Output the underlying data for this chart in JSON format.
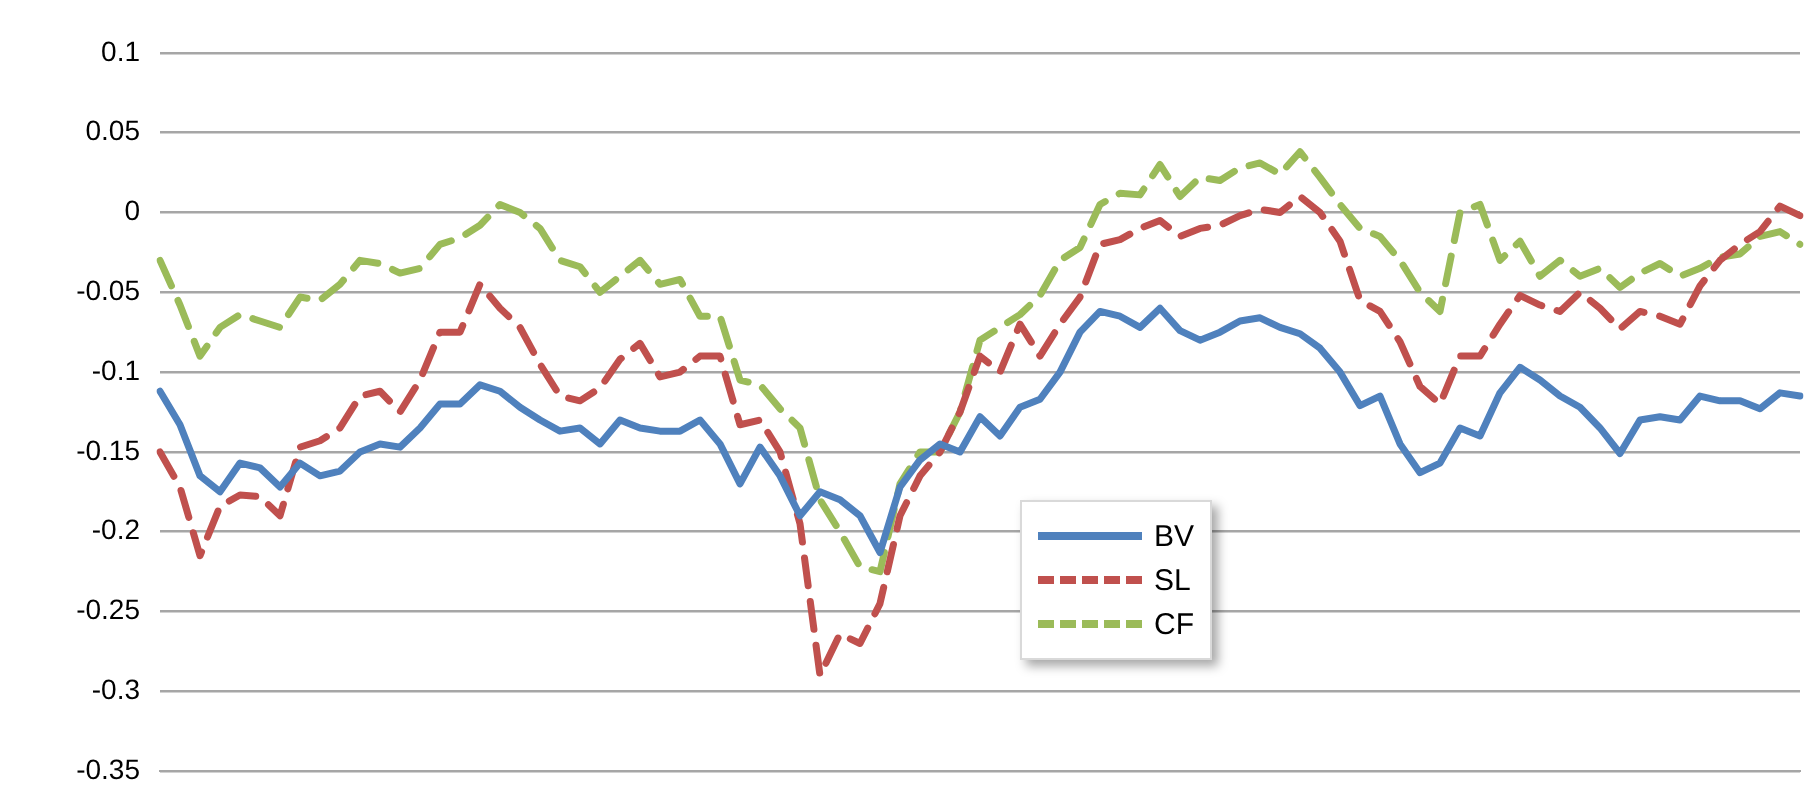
{
  "chart_data": {
    "type": "line",
    "categories": [
      null,
      null,
      null,
      null,
      null,
      null,
      null,
      null,
      null,
      null,
      null,
      null,
      null,
      null,
      null,
      null,
      null,
      null,
      null,
      null,
      null,
      null,
      null,
      null,
      null,
      null,
      null,
      null,
      null,
      null,
      null,
      null,
      null,
      null,
      null,
      null,
      null,
      null,
      null,
      null,
      null,
      null,
      null,
      null,
      null,
      null,
      null,
      null,
      null,
      null,
      null,
      null,
      null,
      null,
      null,
      null,
      null,
      null,
      null,
      null,
      null,
      null,
      null,
      null,
      null,
      null,
      null,
      null,
      null,
      null,
      null,
      null,
      null,
      null,
      null,
      null,
      null,
      null,
      null,
      null,
      null,
      null,
      null
    ],
    "series": [
      {
        "name": "BV",
        "color": "#4f81bd",
        "line_style": "solid",
        "values": [
          -0.112,
          -0.133,
          -0.165,
          -0.175,
          -0.157,
          -0.16,
          -0.172,
          -0.157,
          -0.165,
          -0.162,
          -0.15,
          -0.145,
          -0.147,
          -0.135,
          -0.12,
          -0.12,
          -0.108,
          -0.112,
          -0.122,
          -0.13,
          -0.137,
          -0.135,
          -0.145,
          -0.13,
          -0.135,
          -0.137,
          -0.137,
          -0.13,
          -0.145,
          -0.17,
          -0.147,
          -0.165,
          -0.19,
          -0.175,
          -0.18,
          -0.19,
          -0.213,
          -0.172,
          -0.155,
          -0.145,
          -0.15,
          -0.128,
          -0.14,
          -0.122,
          -0.117,
          -0.1,
          -0.075,
          -0.062,
          -0.065,
          -0.072,
          -0.06,
          -0.074,
          -0.08,
          -0.075,
          -0.068,
          -0.066,
          -0.072,
          -0.076,
          -0.085,
          -0.1,
          -0.121,
          -0.115,
          -0.145,
          -0.163,
          -0.157,
          -0.135,
          -0.14,
          -0.113,
          -0.097,
          -0.105,
          -0.115,
          -0.122,
          -0.135,
          -0.151,
          -0.13,
          -0.128,
          -0.13,
          -0.115,
          -0.118,
          -0.118,
          -0.123,
          -0.113,
          -0.115
        ]
      },
      {
        "name": "SL",
        "color": "#c0504d",
        "line_style": "dashed",
        "values": [
          -0.15,
          -0.172,
          -0.215,
          -0.184,
          -0.177,
          -0.178,
          -0.19,
          -0.147,
          -0.143,
          -0.135,
          -0.115,
          -0.112,
          -0.125,
          -0.105,
          -0.075,
          -0.075,
          -0.045,
          -0.06,
          -0.072,
          -0.095,
          -0.115,
          -0.118,
          -0.11,
          -0.092,
          -0.082,
          -0.103,
          -0.1,
          -0.09,
          -0.09,
          -0.133,
          -0.13,
          -0.15,
          -0.195,
          -0.29,
          -0.264,
          -0.27,
          -0.245,
          -0.19,
          -0.165,
          -0.15,
          -0.125,
          -0.09,
          -0.1,
          -0.07,
          -0.09,
          -0.07,
          -0.053,
          -0.02,
          -0.017,
          -0.01,
          -0.005,
          -0.015,
          -0.01,
          -0.008,
          -0.002,
          0.002,
          0.0,
          0.01,
          0.0,
          -0.018,
          -0.055,
          -0.062,
          -0.081,
          -0.109,
          -0.12,
          -0.09,
          -0.09,
          -0.07,
          -0.052,
          -0.058,
          -0.062,
          -0.05,
          -0.06,
          -0.073,
          -0.062,
          -0.065,
          -0.07,
          -0.046,
          -0.03,
          -0.02,
          -0.012,
          0.004,
          -0.002
        ]
      },
      {
        "name": "CF",
        "color": "#9bbb59",
        "line_style": "dashed",
        "values": [
          -0.03,
          -0.058,
          -0.09,
          -0.072,
          -0.064,
          -0.068,
          -0.072,
          -0.053,
          -0.055,
          -0.045,
          -0.03,
          -0.032,
          -0.038,
          -0.035,
          -0.02,
          -0.016,
          -0.008,
          0.005,
          0.0,
          -0.01,
          -0.03,
          -0.034,
          -0.05,
          -0.04,
          -0.03,
          -0.045,
          -0.042,
          -0.065,
          -0.065,
          -0.105,
          -0.108,
          -0.123,
          -0.135,
          -0.18,
          -0.2,
          -0.222,
          -0.225,
          -0.17,
          -0.15,
          -0.15,
          -0.125,
          -0.08,
          -0.072,
          -0.064,
          -0.052,
          -0.03,
          -0.022,
          0.005,
          0.012,
          0.011,
          0.03,
          0.01,
          0.022,
          0.02,
          0.028,
          0.031,
          0.024,
          0.038,
          0.022,
          0.005,
          -0.01,
          -0.015,
          -0.03,
          -0.05,
          -0.062,
          0.0,
          0.005,
          -0.03,
          -0.018,
          -0.04,
          -0.03,
          -0.04,
          -0.035,
          -0.047,
          -0.038,
          -0.032,
          -0.04,
          -0.035,
          -0.028,
          -0.026,
          -0.015,
          -0.012,
          -0.02
        ]
      }
    ],
    "ylim": [
      -0.35,
      0.1
    ],
    "yticks": [
      -0.35,
      -0.3,
      -0.25,
      -0.2,
      -0.15,
      -0.1,
      -0.05,
      0,
      0.05,
      0.1
    ],
    "grid": "y",
    "tick_labels": "y",
    "legend": "bottom"
  }
}
